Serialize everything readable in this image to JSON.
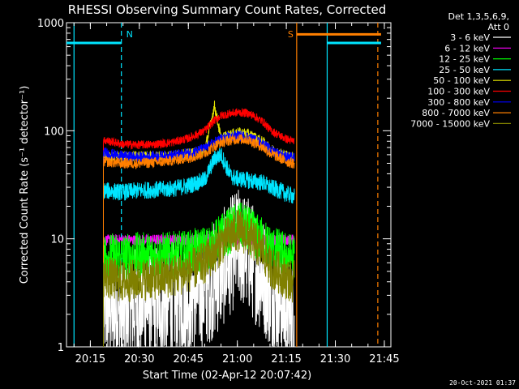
{
  "chart_data": {
    "type": "line",
    "title": "RHESSI Observing Summary Count Rates, Corrected",
    "xlabel": "Start Time (02-Apr-12 20:07:42)",
    "ylabel": "Corrected Count Rate (s⁻¹ detector⁻¹)",
    "y_scale": "log",
    "ylim": [
      1,
      1000
    ],
    "xlim": [
      "20:07:42",
      "21:47:00"
    ],
    "x_ticks": [
      "20:15",
      "20:30",
      "20:45",
      "21:00",
      "21:15",
      "21:30",
      "21:45"
    ],
    "y_ticks": [
      "1",
      "10",
      "100",
      "1000"
    ],
    "legend_header": [
      "Det 1,3,5,6,9,",
      "Att 0"
    ],
    "legend_position": "right",
    "footer_date": "20-Oct-2021 01:37",
    "markers": [
      {
        "label": "N",
        "time": "20:24:30",
        "color": "#00e5ff",
        "style": "dashed"
      },
      {
        "label": "",
        "time": "20:10:00",
        "color": "#00e5ff",
        "style": "solid"
      },
      {
        "label": "S",
        "time": "21:18:10",
        "color": "#ff7f00",
        "style": "solid"
      },
      {
        "label": "",
        "time": "21:27:30",
        "color": "#00e5ff",
        "style": "solid"
      },
      {
        "label": "",
        "time": "21:43:00",
        "color": "#ff7f00",
        "style": "dashed"
      }
    ],
    "overlays": [
      {
        "color": "#00e5ff",
        "from": "20:07:42",
        "to": "20:24:30",
        "value": 650
      },
      {
        "color": "#ff7f00",
        "from": "21:18:10",
        "to": "21:44:00",
        "value": 780
      },
      {
        "color": "#00e5ff",
        "from": "21:27:30",
        "to": "21:44:00",
        "value": 650
      }
    ],
    "data_window": [
      "20:19:00",
      "21:17:30"
    ],
    "x": [
      "20:19",
      "20:25",
      "20:30",
      "20:35",
      "20:40",
      "20:45",
      "20:50",
      "20:53",
      "20:55",
      "20:58",
      "21:00",
      "21:03",
      "21:05",
      "21:08",
      "21:10",
      "21:13",
      "21:15",
      "21:17"
    ],
    "series": [
      {
        "name": "3 - 6 keV",
        "color": "#ffffff",
        "values": [
          2.5,
          2.0,
          2.6,
          2.6,
          2.8,
          3.0,
          3.5,
          4.2,
          5.0,
          7.0,
          8.5,
          7.5,
          6.0,
          4.5,
          3.5,
          2.8,
          2.3,
          1.8
        ]
      },
      {
        "name": "6 - 12 keV",
        "color": "#ff00ff",
        "values": [
          9.7,
          9.8,
          9.7,
          9.8,
          9.8,
          9.8,
          9.8,
          9.9,
          9.8,
          9.8,
          9.8,
          9.8,
          9.8,
          9.8,
          9.8,
          9.8,
          9.8,
          9.8
        ]
      },
      {
        "name": "12 - 25 keV",
        "color": "#00ff00",
        "values": [
          7.0,
          6.8,
          7.0,
          7.0,
          7.1,
          7.3,
          8.0,
          9.0,
          10.5,
          12.0,
          13.5,
          12.5,
          11.0,
          9.5,
          8.2,
          7.5,
          7.0,
          6.8
        ]
      },
      {
        "name": "25 - 50 keV",
        "color": "#00e5ff",
        "values": [
          28,
          27,
          28,
          28.5,
          29,
          31,
          35,
          55,
          60,
          38,
          36,
          35,
          34,
          33,
          30,
          28,
          26,
          25
        ]
      },
      {
        "name": "50 - 100 keV",
        "color": "#e6e600",
        "values": [
          58,
          58,
          58,
          58,
          59,
          61,
          65,
          170,
          85,
          92,
          96,
          94,
          88,
          78,
          68,
          62,
          59,
          57
        ]
      },
      {
        "name": "100 - 300 keV",
        "color": "#ff0000",
        "values": [
          82,
          75,
          74,
          75,
          78,
          85,
          100,
          125,
          138,
          145,
          148,
          146,
          138,
          120,
          102,
          90,
          84,
          80
        ]
      },
      {
        "name": "300 - 800 keV",
        "color": "#0000ff",
        "values": [
          63,
          58,
          57,
          58,
          59,
          62,
          68,
          78,
          84,
          88,
          90,
          88,
          83,
          75,
          67,
          61,
          58,
          56
        ]
      },
      {
        "name": "800 - 7000 keV",
        "color": "#ff7f00",
        "values": [
          52,
          50,
          50,
          51,
          53,
          56,
          62,
          72,
          78,
          82,
          84,
          83,
          78,
          70,
          62,
          56,
          52,
          50
        ]
      },
      {
        "name": "7000 - 15000 keV",
        "color": "#808000",
        "values": [
          4.5,
          4.0,
          4.2,
          4.3,
          4.5,
          5.0,
          6.0,
          7.5,
          9.0,
          11.0,
          12.0,
          11.0,
          9.5,
          7.5,
          5.5,
          4.8,
          4.3,
          4.0
        ]
      }
    ]
  }
}
